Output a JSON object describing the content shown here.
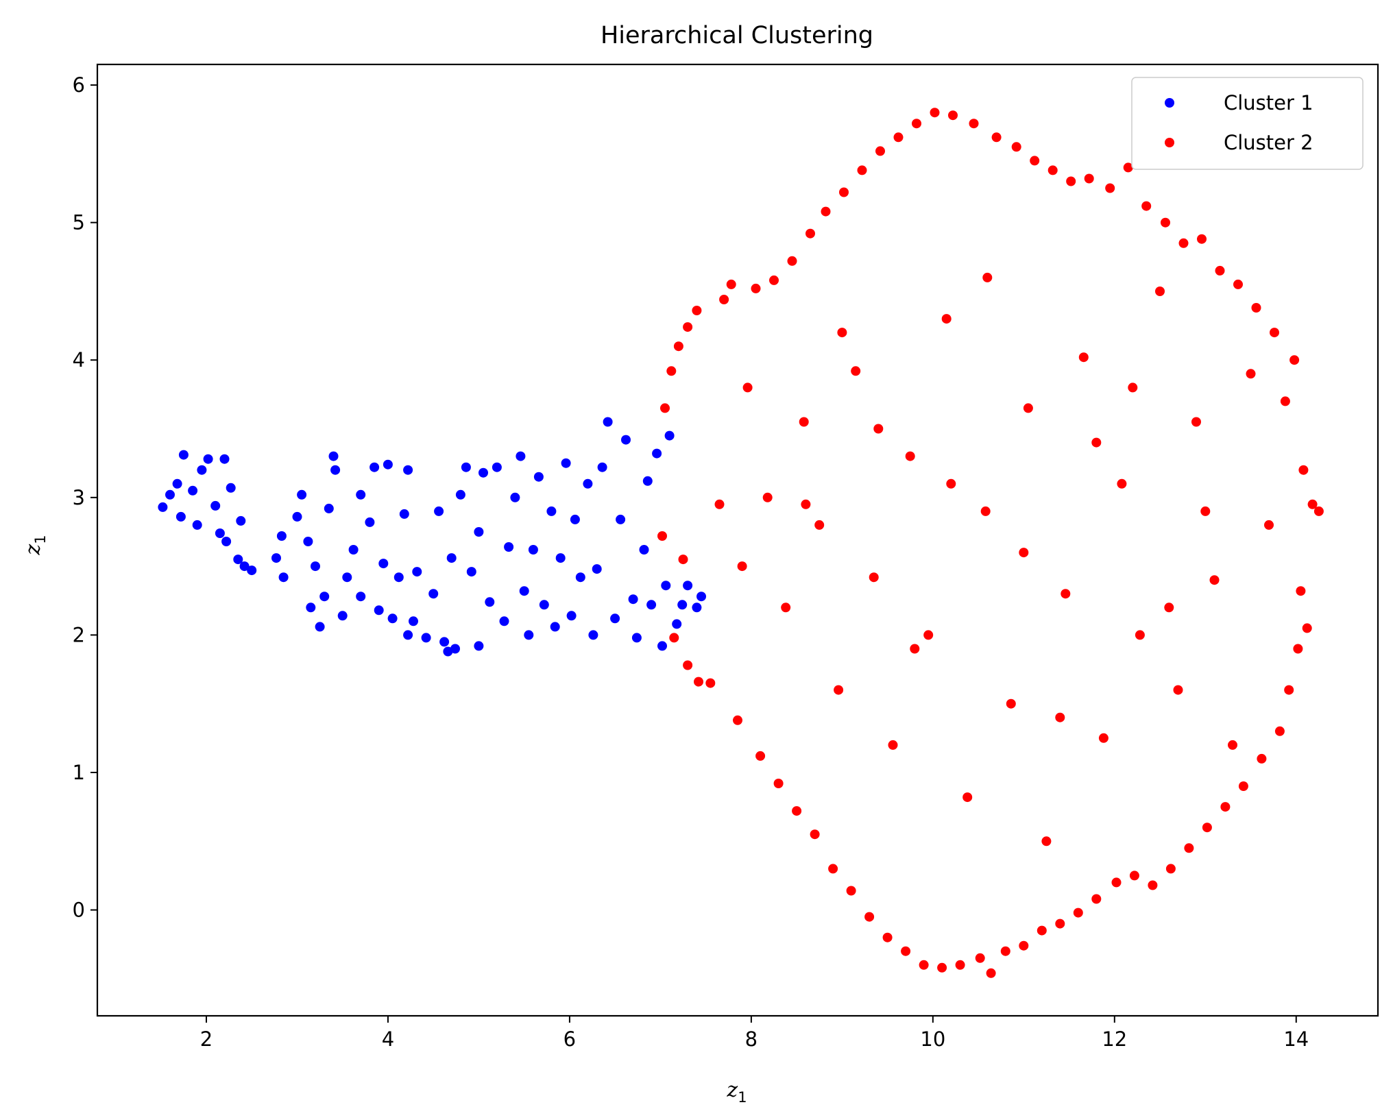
{
  "chart_data": {
    "type": "scatter",
    "title": "Hierarchical Clustering",
    "xlabel": {
      "base": "z",
      "sub": "1"
    },
    "ylabel": {
      "base": "z",
      "sub": "1"
    },
    "xlim": [
      0.8,
      14.9
    ],
    "ylim": [
      -0.77,
      6.15
    ],
    "xticks": [
      2,
      4,
      6,
      8,
      10,
      12,
      14
    ],
    "yticks": [
      0,
      1,
      2,
      3,
      4,
      5,
      6
    ],
    "grid": false,
    "legend_position": "top-right",
    "series": [
      {
        "name": "Cluster 1",
        "color": "#0000ff",
        "points": [
          [
            1.52,
            2.93
          ],
          [
            1.6,
            3.02
          ],
          [
            1.68,
            3.1
          ],
          [
            1.75,
            3.31
          ],
          [
            1.72,
            2.86
          ],
          [
            1.85,
            3.05
          ],
          [
            1.9,
            2.8
          ],
          [
            1.95,
            3.2
          ],
          [
            2.02,
            3.28
          ],
          [
            2.1,
            2.94
          ],
          [
            2.15,
            2.74
          ],
          [
            2.22,
            2.68
          ],
          [
            2.27,
            3.07
          ],
          [
            2.2,
            3.28
          ],
          [
            2.35,
            2.55
          ],
          [
            2.42,
            2.5
          ],
          [
            2.5,
            2.47
          ],
          [
            2.38,
            2.83
          ],
          [
            2.83,
            2.72
          ],
          [
            2.77,
            2.56
          ],
          [
            2.85,
            2.42
          ],
          [
            3.0,
            2.86
          ],
          [
            3.05,
            3.02
          ],
          [
            3.12,
            2.68
          ],
          [
            3.2,
            2.5
          ],
          [
            3.15,
            2.2
          ],
          [
            3.25,
            2.06
          ],
          [
            3.3,
            2.28
          ],
          [
            3.35,
            2.92
          ],
          [
            3.42,
            3.2
          ],
          [
            3.4,
            3.3
          ],
          [
            3.5,
            2.14
          ],
          [
            3.55,
            2.42
          ],
          [
            3.62,
            2.62
          ],
          [
            3.7,
            3.02
          ],
          [
            3.7,
            2.28
          ],
          [
            3.8,
            2.82
          ],
          [
            3.85,
            3.22
          ],
          [
            3.9,
            2.18
          ],
          [
            3.95,
            2.52
          ],
          [
            4.0,
            3.24
          ],
          [
            4.05,
            2.12
          ],
          [
            4.12,
            2.42
          ],
          [
            4.18,
            2.88
          ],
          [
            4.22,
            3.2
          ],
          [
            4.28,
            2.1
          ],
          [
            4.32,
            2.46
          ],
          [
            4.22,
            2.0
          ],
          [
            4.42,
            1.98
          ],
          [
            4.5,
            2.3
          ],
          [
            4.56,
            2.9
          ],
          [
            4.62,
            1.95
          ],
          [
            4.66,
            1.88
          ],
          [
            4.74,
            1.9
          ],
          [
            4.7,
            2.56
          ],
          [
            4.8,
            3.02
          ],
          [
            4.86,
            3.22
          ],
          [
            4.92,
            2.46
          ],
          [
            5.0,
            2.75
          ],
          [
            5.05,
            3.18
          ],
          [
            5.0,
            1.92
          ],
          [
            5.12,
            2.24
          ],
          [
            5.2,
            3.22
          ],
          [
            5.28,
            2.1
          ],
          [
            5.33,
            2.64
          ],
          [
            5.4,
            3.0
          ],
          [
            5.46,
            3.3
          ],
          [
            5.5,
            2.32
          ],
          [
            5.55,
            2.0
          ],
          [
            5.6,
            2.62
          ],
          [
            5.66,
            3.15
          ],
          [
            5.72,
            2.22
          ],
          [
            5.8,
            2.9
          ],
          [
            5.84,
            2.06
          ],
          [
            5.9,
            2.56
          ],
          [
            5.96,
            3.25
          ],
          [
            6.02,
            2.14
          ],
          [
            6.06,
            2.84
          ],
          [
            6.12,
            2.42
          ],
          [
            6.2,
            3.1
          ],
          [
            6.26,
            2.0
          ],
          [
            6.3,
            2.48
          ],
          [
            6.36,
            3.22
          ],
          [
            6.42,
            3.55
          ],
          [
            6.5,
            2.12
          ],
          [
            6.56,
            2.84
          ],
          [
            6.62,
            3.42
          ],
          [
            6.7,
            2.26
          ],
          [
            6.74,
            1.98
          ],
          [
            6.82,
            2.62
          ],
          [
            6.86,
            3.12
          ],
          [
            6.9,
            2.22
          ],
          [
            6.96,
            3.32
          ],
          [
            7.02,
            1.92
          ],
          [
            7.06,
            2.36
          ],
          [
            7.1,
            3.45
          ],
          [
            7.18,
            2.08
          ],
          [
            7.24,
            2.22
          ],
          [
            7.3,
            2.36
          ],
          [
            7.4,
            2.2
          ],
          [
            7.45,
            2.28
          ]
        ]
      },
      {
        "name": "Cluster 2",
        "color": "#ff0000",
        "points": [
          [
            7.02,
            2.72
          ],
          [
            7.05,
            3.65
          ],
          [
            7.12,
            3.92
          ],
          [
            7.2,
            4.1
          ],
          [
            7.3,
            4.24
          ],
          [
            7.4,
            4.36
          ],
          [
            7.25,
            2.55
          ],
          [
            7.15,
            1.98
          ],
          [
            7.3,
            1.78
          ],
          [
            7.42,
            1.66
          ],
          [
            7.55,
            1.65
          ],
          [
            7.65,
            2.95
          ],
          [
            7.7,
            4.44
          ],
          [
            7.78,
            4.55
          ],
          [
            7.85,
            1.38
          ],
          [
            7.9,
            2.5
          ],
          [
            7.96,
            3.8
          ],
          [
            8.05,
            4.52
          ],
          [
            8.1,
            1.12
          ],
          [
            8.18,
            3.0
          ],
          [
            8.25,
            4.58
          ],
          [
            8.3,
            0.92
          ],
          [
            8.38,
            2.2
          ],
          [
            8.45,
            4.72
          ],
          [
            8.5,
            0.72
          ],
          [
            8.58,
            3.55
          ],
          [
            8.65,
            4.92
          ],
          [
            8.7,
            0.55
          ],
          [
            8.75,
            2.8
          ],
          [
            8.82,
            5.08
          ],
          [
            8.9,
            0.3
          ],
          [
            8.96,
            1.6
          ],
          [
            9.02,
            5.22
          ],
          [
            9.1,
            0.14
          ],
          [
            9.15,
            3.92
          ],
          [
            9.22,
            5.38
          ],
          [
            9.3,
            -0.05
          ],
          [
            9.35,
            2.42
          ],
          [
            9.42,
            5.52
          ],
          [
            9.5,
            -0.2
          ],
          [
            9.56,
            1.2
          ],
          [
            9.62,
            5.62
          ],
          [
            9.7,
            -0.3
          ],
          [
            9.75,
            3.3
          ],
          [
            9.82,
            5.72
          ],
          [
            9.9,
            -0.4
          ],
          [
            9.95,
            2.0
          ],
          [
            10.02,
            5.8
          ],
          [
            10.1,
            -0.42
          ],
          [
            10.15,
            4.3
          ],
          [
            10.22,
            5.78
          ],
          [
            10.3,
            -0.4
          ],
          [
            10.38,
            0.82
          ],
          [
            10.45,
            5.72
          ],
          [
            10.52,
            -0.35
          ],
          [
            10.58,
            2.9
          ],
          [
            10.64,
            -0.46
          ],
          [
            10.7,
            5.62
          ],
          [
            10.8,
            -0.3
          ],
          [
            10.86,
            1.5
          ],
          [
            10.92,
            5.55
          ],
          [
            11.0,
            -0.26
          ],
          [
            11.05,
            3.65
          ],
          [
            11.12,
            5.45
          ],
          [
            11.2,
            -0.15
          ],
          [
            11.25,
            0.5
          ],
          [
            11.32,
            5.38
          ],
          [
            11.4,
            -0.1
          ],
          [
            11.46,
            2.3
          ],
          [
            11.52,
            5.3
          ],
          [
            11.6,
            -0.02
          ],
          [
            11.66,
            4.02
          ],
          [
            11.72,
            5.32
          ],
          [
            11.8,
            0.08
          ],
          [
            11.88,
            1.25
          ],
          [
            11.95,
            5.25
          ],
          [
            12.02,
            0.2
          ],
          [
            12.08,
            3.1
          ],
          [
            12.15,
            5.4
          ],
          [
            12.22,
            0.25
          ],
          [
            12.28,
            2.0
          ],
          [
            12.35,
            5.12
          ],
          [
            12.42,
            0.18
          ],
          [
            12.5,
            4.5
          ],
          [
            12.56,
            5.0
          ],
          [
            12.62,
            0.3
          ],
          [
            12.7,
            1.6
          ],
          [
            12.76,
            4.85
          ],
          [
            12.82,
            0.45
          ],
          [
            12.9,
            3.55
          ],
          [
            12.96,
            4.88
          ],
          [
            13.02,
            0.6
          ],
          [
            13.1,
            2.4
          ],
          [
            13.16,
            4.65
          ],
          [
            13.22,
            0.75
          ],
          [
            13.3,
            1.2
          ],
          [
            13.36,
            4.55
          ],
          [
            13.42,
            0.9
          ],
          [
            13.5,
            3.9
          ],
          [
            13.56,
            4.38
          ],
          [
            13.62,
            1.1
          ],
          [
            13.7,
            2.8
          ],
          [
            13.76,
            4.2
          ],
          [
            13.82,
            1.3
          ],
          [
            13.88,
            3.7
          ],
          [
            13.92,
            1.6
          ],
          [
            13.98,
            4.0
          ],
          [
            14.02,
            1.9
          ],
          [
            14.05,
            2.32
          ],
          [
            14.08,
            3.2
          ],
          [
            14.12,
            2.05
          ],
          [
            14.18,
            2.95
          ],
          [
            14.25,
            2.9
          ],
          [
            8.6,
            2.95
          ],
          [
            9.4,
            3.5
          ],
          [
            10.2,
            3.1
          ],
          [
            11.0,
            2.6
          ],
          [
            11.8,
            3.4
          ],
          [
            12.6,
            2.2
          ],
          [
            9.0,
            4.2
          ],
          [
            10.6,
            4.6
          ],
          [
            12.2,
            3.8
          ],
          [
            9.8,
            1.9
          ],
          [
            11.4,
            1.4
          ],
          [
            13.0,
            2.9
          ]
        ]
      }
    ]
  }
}
